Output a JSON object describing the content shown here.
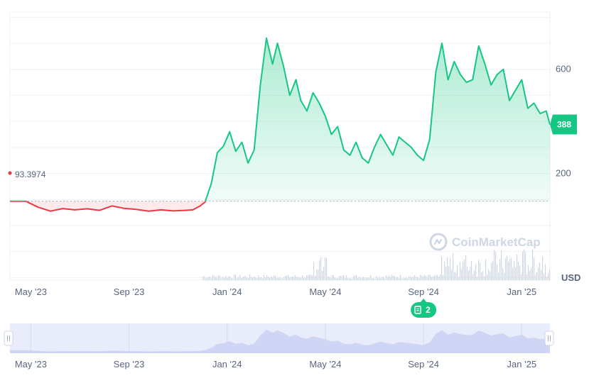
{
  "chart_data": {
    "type": "area",
    "baseline_value": 93.3974,
    "baseline_label": "93.3974",
    "current_value": 388,
    "current_label": "388",
    "unit": "USD",
    "watermark": "CoinMarketCap",
    "y_ticks": [
      200,
      600
    ],
    "y_tick_labels": [
      "200",
      "600"
    ],
    "ylim": [
      -210,
      820
    ],
    "x_ticks": [
      "May '23",
      "Sep '23",
      "Jan '24",
      "May '24",
      "Sep '24",
      "Jan '25"
    ],
    "x_tick_positions": [
      0,
      4,
      8,
      12,
      16,
      20
    ],
    "xlim": [
      -0.85,
      21.15
    ],
    "colors": {
      "up_line": "#16c784",
      "down_line": "#ea3943",
      "up_fill": "#16c784",
      "down_fill": "#ea3943",
      "grid": "#eff2f5",
      "volume": "#cfd6e4",
      "navigator_bg": "#e8ecfb",
      "navigator_area": "#cfd6f5"
    },
    "event_marker": {
      "label": "2",
      "icon": "document-icon",
      "x": 16.0
    },
    "series": [
      {
        "x": [
          -0.85,
          -0.2,
          0.3,
          0.8,
          1.3,
          1.8,
          2.3,
          2.8,
          3.3,
          3.8,
          4.3,
          4.8,
          5.3,
          5.8,
          6.3,
          6.6,
          6.9,
          7.1,
          7.35,
          7.6,
          7.85,
          8.1,
          8.35,
          8.6,
          8.85,
          9.1,
          9.35,
          9.6,
          9.85,
          10.05,
          10.3,
          10.55,
          10.8,
          11.0,
          11.25,
          11.5,
          11.75,
          12.0,
          12.25,
          12.5,
          12.75,
          13.0,
          13.25,
          13.5,
          13.75,
          14.0,
          14.25,
          14.5,
          14.75,
          15.0,
          15.25,
          15.5,
          15.75,
          16.0,
          16.25,
          16.5,
          16.75,
          17.0,
          17.25,
          17.5,
          17.75,
          18.0,
          18.25,
          18.5,
          18.75,
          19.0,
          19.25,
          19.5,
          19.75,
          20.0,
          20.25,
          20.5,
          20.75,
          21.0,
          21.15
        ],
        "y": [
          93,
          93,
          70,
          55,
          65,
          60,
          64,
          58,
          75,
          66,
          62,
          55,
          60,
          56,
          58,
          60,
          75,
          90,
          160,
          280,
          305,
          360,
          285,
          320,
          240,
          290,
          540,
          720,
          620,
          700,
          610,
          500,
          560,
          480,
          440,
          510,
          470,
          420,
          350,
          380,
          290,
          270,
          320,
          260,
          240,
          300,
          350,
          310,
          270,
          340,
          320,
          300,
          270,
          250,
          330,
          590,
          700,
          560,
          630,
          580,
          550,
          560,
          690,
          620,
          540,
          580,
          600,
          480,
          520,
          560,
          450,
          470,
          430,
          440,
          388
        ]
      }
    ]
  }
}
